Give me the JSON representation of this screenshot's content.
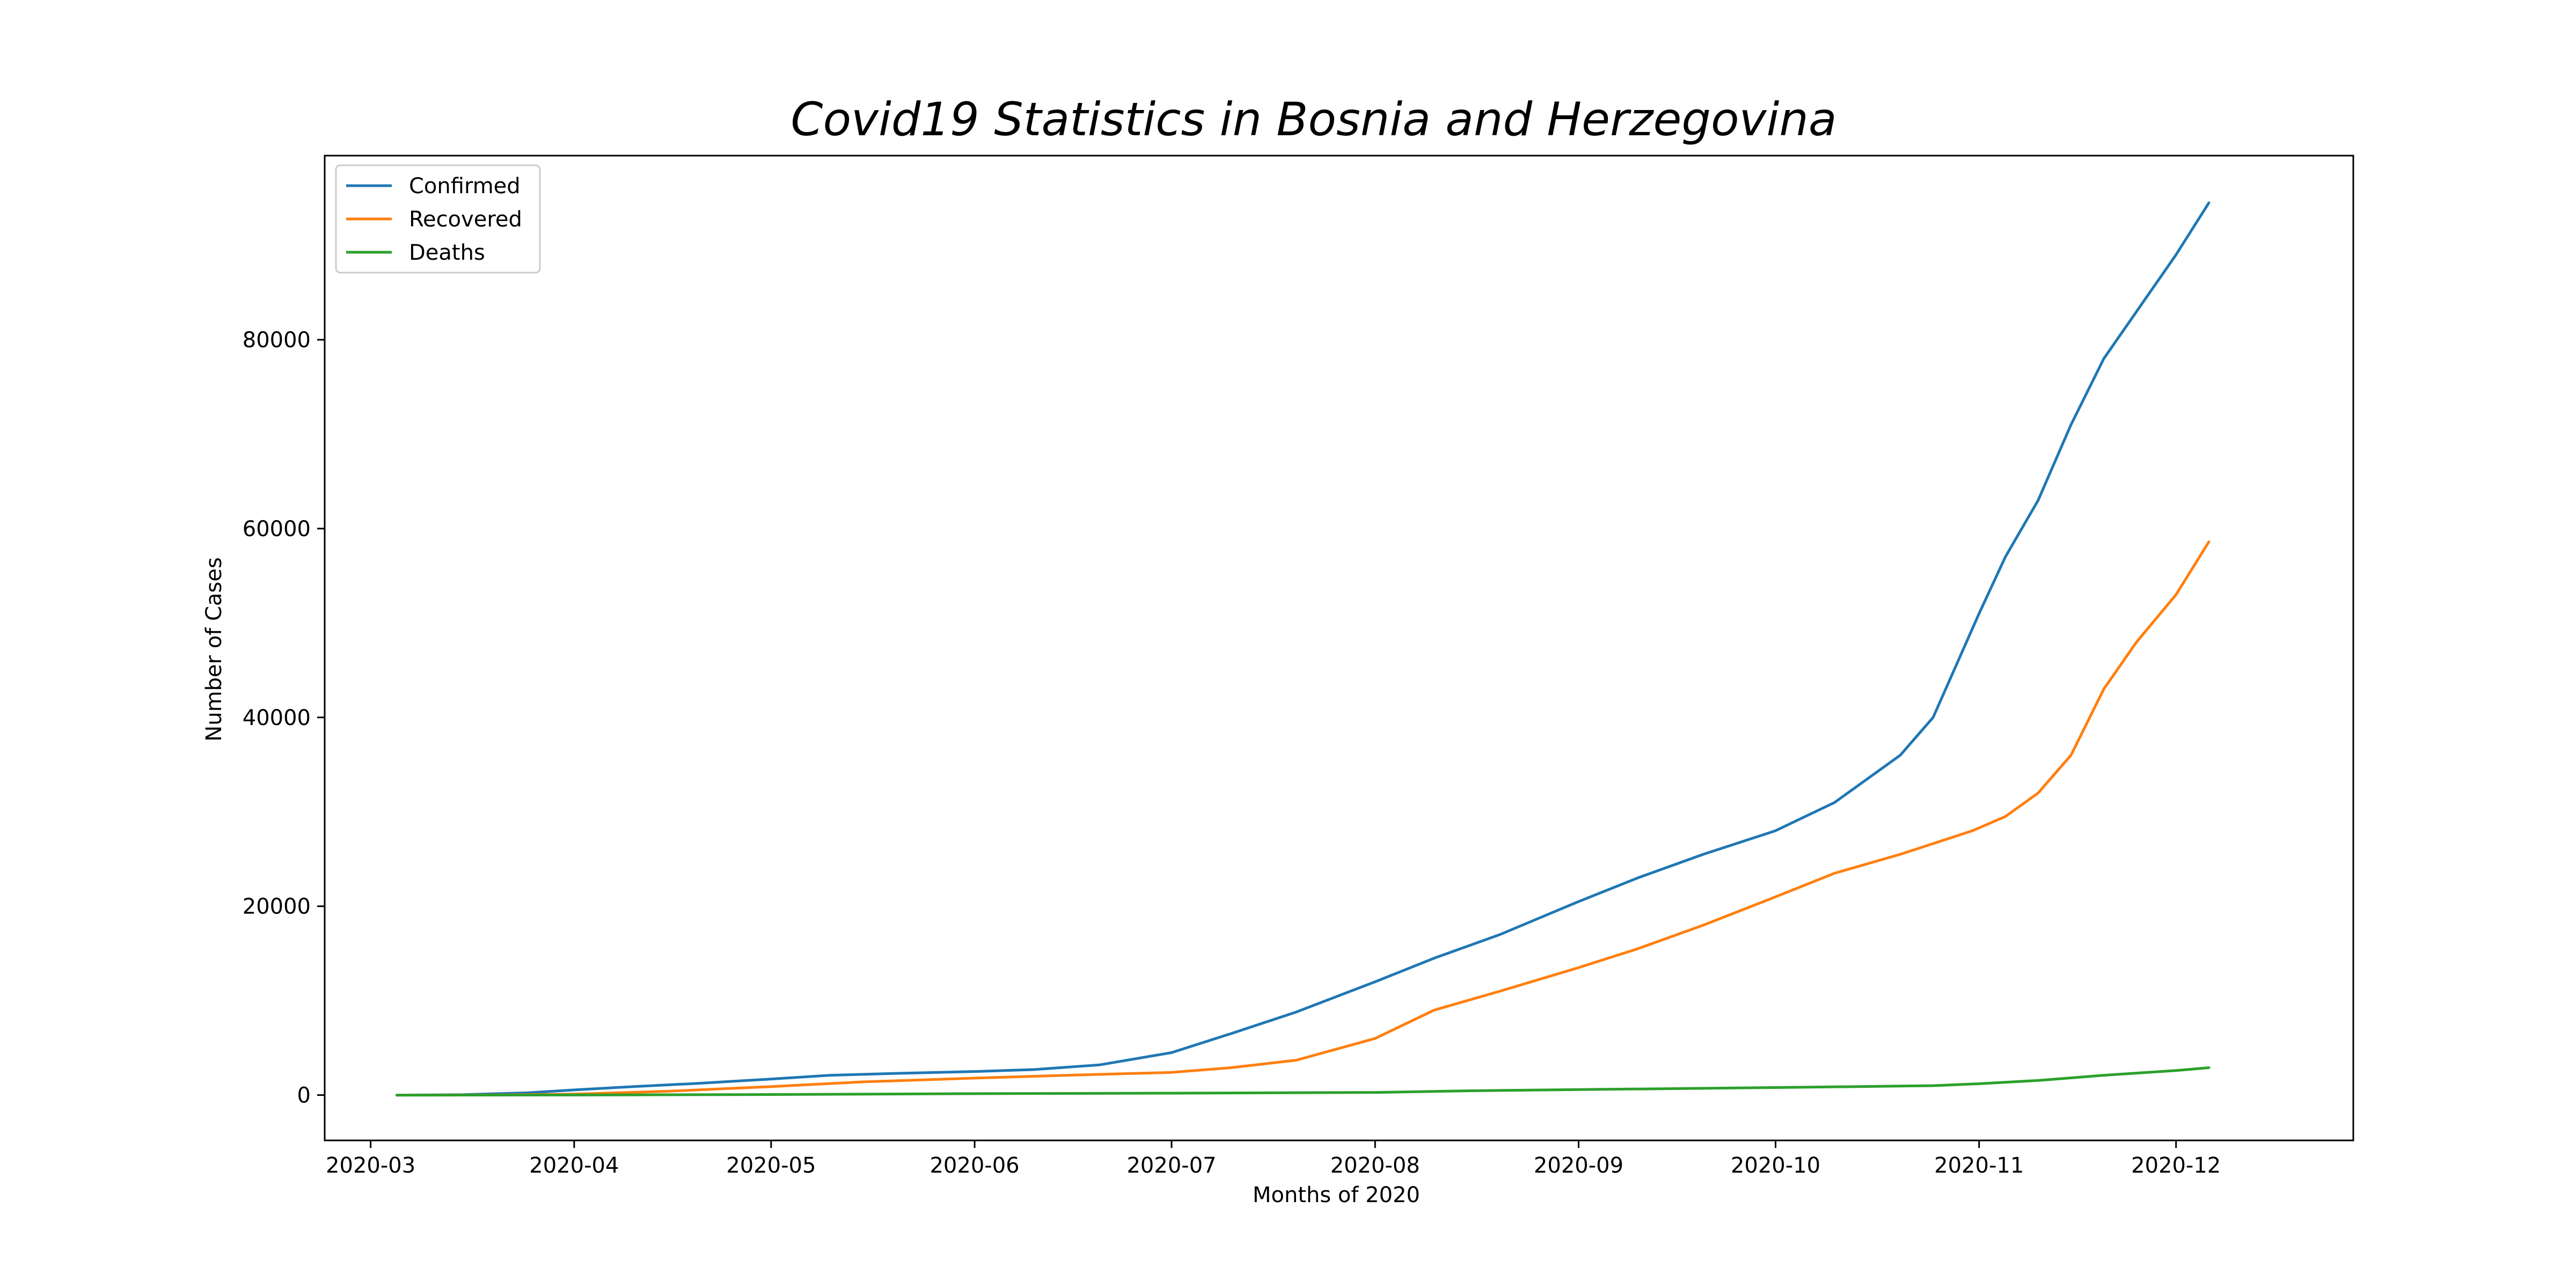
{
  "chart_data": {
    "type": "line",
    "title": "Covid19 Statistics in Bosnia and Herzegovina",
    "xlabel": "Months of 2020",
    "ylabel": "Number of Cases",
    "xlim": [
      "2020-02-23",
      "2020-12-28"
    ],
    "ylim": [
      -4800,
      99500
    ],
    "x_ticks": [
      "2020-03",
      "2020-04",
      "2020-05",
      "2020-06",
      "2020-07",
      "2020-08",
      "2020-09",
      "2020-10",
      "2020-11",
      "2020-12"
    ],
    "y_ticks": [
      0,
      20000,
      40000,
      60000,
      80000
    ],
    "grid": false,
    "legend_position": "upper-left",
    "series": [
      {
        "name": "Confirmed",
        "color": "#1f77b4",
        "points": [
          [
            "2020-03-05",
            0
          ],
          [
            "2020-03-15",
            40
          ],
          [
            "2020-03-25",
            250
          ],
          [
            "2020-04-01",
            550
          ],
          [
            "2020-04-10",
            900
          ],
          [
            "2020-04-20",
            1250
          ],
          [
            "2020-05-01",
            1700
          ],
          [
            "2020-05-10",
            2100
          ],
          [
            "2020-05-20",
            2300
          ],
          [
            "2020-06-01",
            2500
          ],
          [
            "2020-06-10",
            2700
          ],
          [
            "2020-06-20",
            3200
          ],
          [
            "2020-07-01",
            4500
          ],
          [
            "2020-07-10",
            6500
          ],
          [
            "2020-07-20",
            8800
          ],
          [
            "2020-08-01",
            12000
          ],
          [
            "2020-08-10",
            14500
          ],
          [
            "2020-08-20",
            17000
          ],
          [
            "2020-09-01",
            20500
          ],
          [
            "2020-09-10",
            23000
          ],
          [
            "2020-09-20",
            25500
          ],
          [
            "2020-10-01",
            28000
          ],
          [
            "2020-10-10",
            31000
          ],
          [
            "2020-10-20",
            36000
          ],
          [
            "2020-10-25",
            40000
          ],
          [
            "2020-11-01",
            51000
          ],
          [
            "2020-11-05",
            57000
          ],
          [
            "2020-11-10",
            63000
          ],
          [
            "2020-11-15",
            71000
          ],
          [
            "2020-11-20",
            78000
          ],
          [
            "2020-11-25",
            83000
          ],
          [
            "2020-12-01",
            89000
          ],
          [
            "2020-12-06",
            94500
          ]
        ]
      },
      {
        "name": "Recovered",
        "color": "#ff7f0e",
        "points": [
          [
            "2020-03-05",
            0
          ],
          [
            "2020-03-20",
            20
          ],
          [
            "2020-04-01",
            100
          ],
          [
            "2020-04-15",
            400
          ],
          [
            "2020-05-01",
            900
          ],
          [
            "2020-05-15",
            1400
          ],
          [
            "2020-06-01",
            1800
          ],
          [
            "2020-06-15",
            2100
          ],
          [
            "2020-07-01",
            2400
          ],
          [
            "2020-07-10",
            2900
          ],
          [
            "2020-07-20",
            3700
          ],
          [
            "2020-08-01",
            6000
          ],
          [
            "2020-08-10",
            9000
          ],
          [
            "2020-08-20",
            11000
          ],
          [
            "2020-09-01",
            13500
          ],
          [
            "2020-09-10",
            15500
          ],
          [
            "2020-09-20",
            18000
          ],
          [
            "2020-10-01",
            21000
          ],
          [
            "2020-10-10",
            23500
          ],
          [
            "2020-10-20",
            25500
          ],
          [
            "2020-10-31",
            28000
          ],
          [
            "2020-11-05",
            29500
          ],
          [
            "2020-11-10",
            32000
          ],
          [
            "2020-11-15",
            36000
          ],
          [
            "2020-11-20",
            43000
          ],
          [
            "2020-11-25",
            48000
          ],
          [
            "2020-12-01",
            53000
          ],
          [
            "2020-12-06",
            58600
          ]
        ]
      },
      {
        "name": "Deaths",
        "color": "#2ca02c",
        "points": [
          [
            "2020-03-05",
            0
          ],
          [
            "2020-04-01",
            10
          ],
          [
            "2020-05-01",
            60
          ],
          [
            "2020-06-01",
            150
          ],
          [
            "2020-07-01",
            200
          ],
          [
            "2020-08-01",
            280
          ],
          [
            "2020-08-15",
            450
          ],
          [
            "2020-09-01",
            580
          ],
          [
            "2020-10-01",
            800
          ],
          [
            "2020-10-25",
            1000
          ],
          [
            "2020-11-01",
            1200
          ],
          [
            "2020-11-10",
            1550
          ],
          [
            "2020-11-20",
            2100
          ],
          [
            "2020-12-01",
            2600
          ],
          [
            "2020-12-06",
            2900
          ]
        ]
      }
    ]
  }
}
